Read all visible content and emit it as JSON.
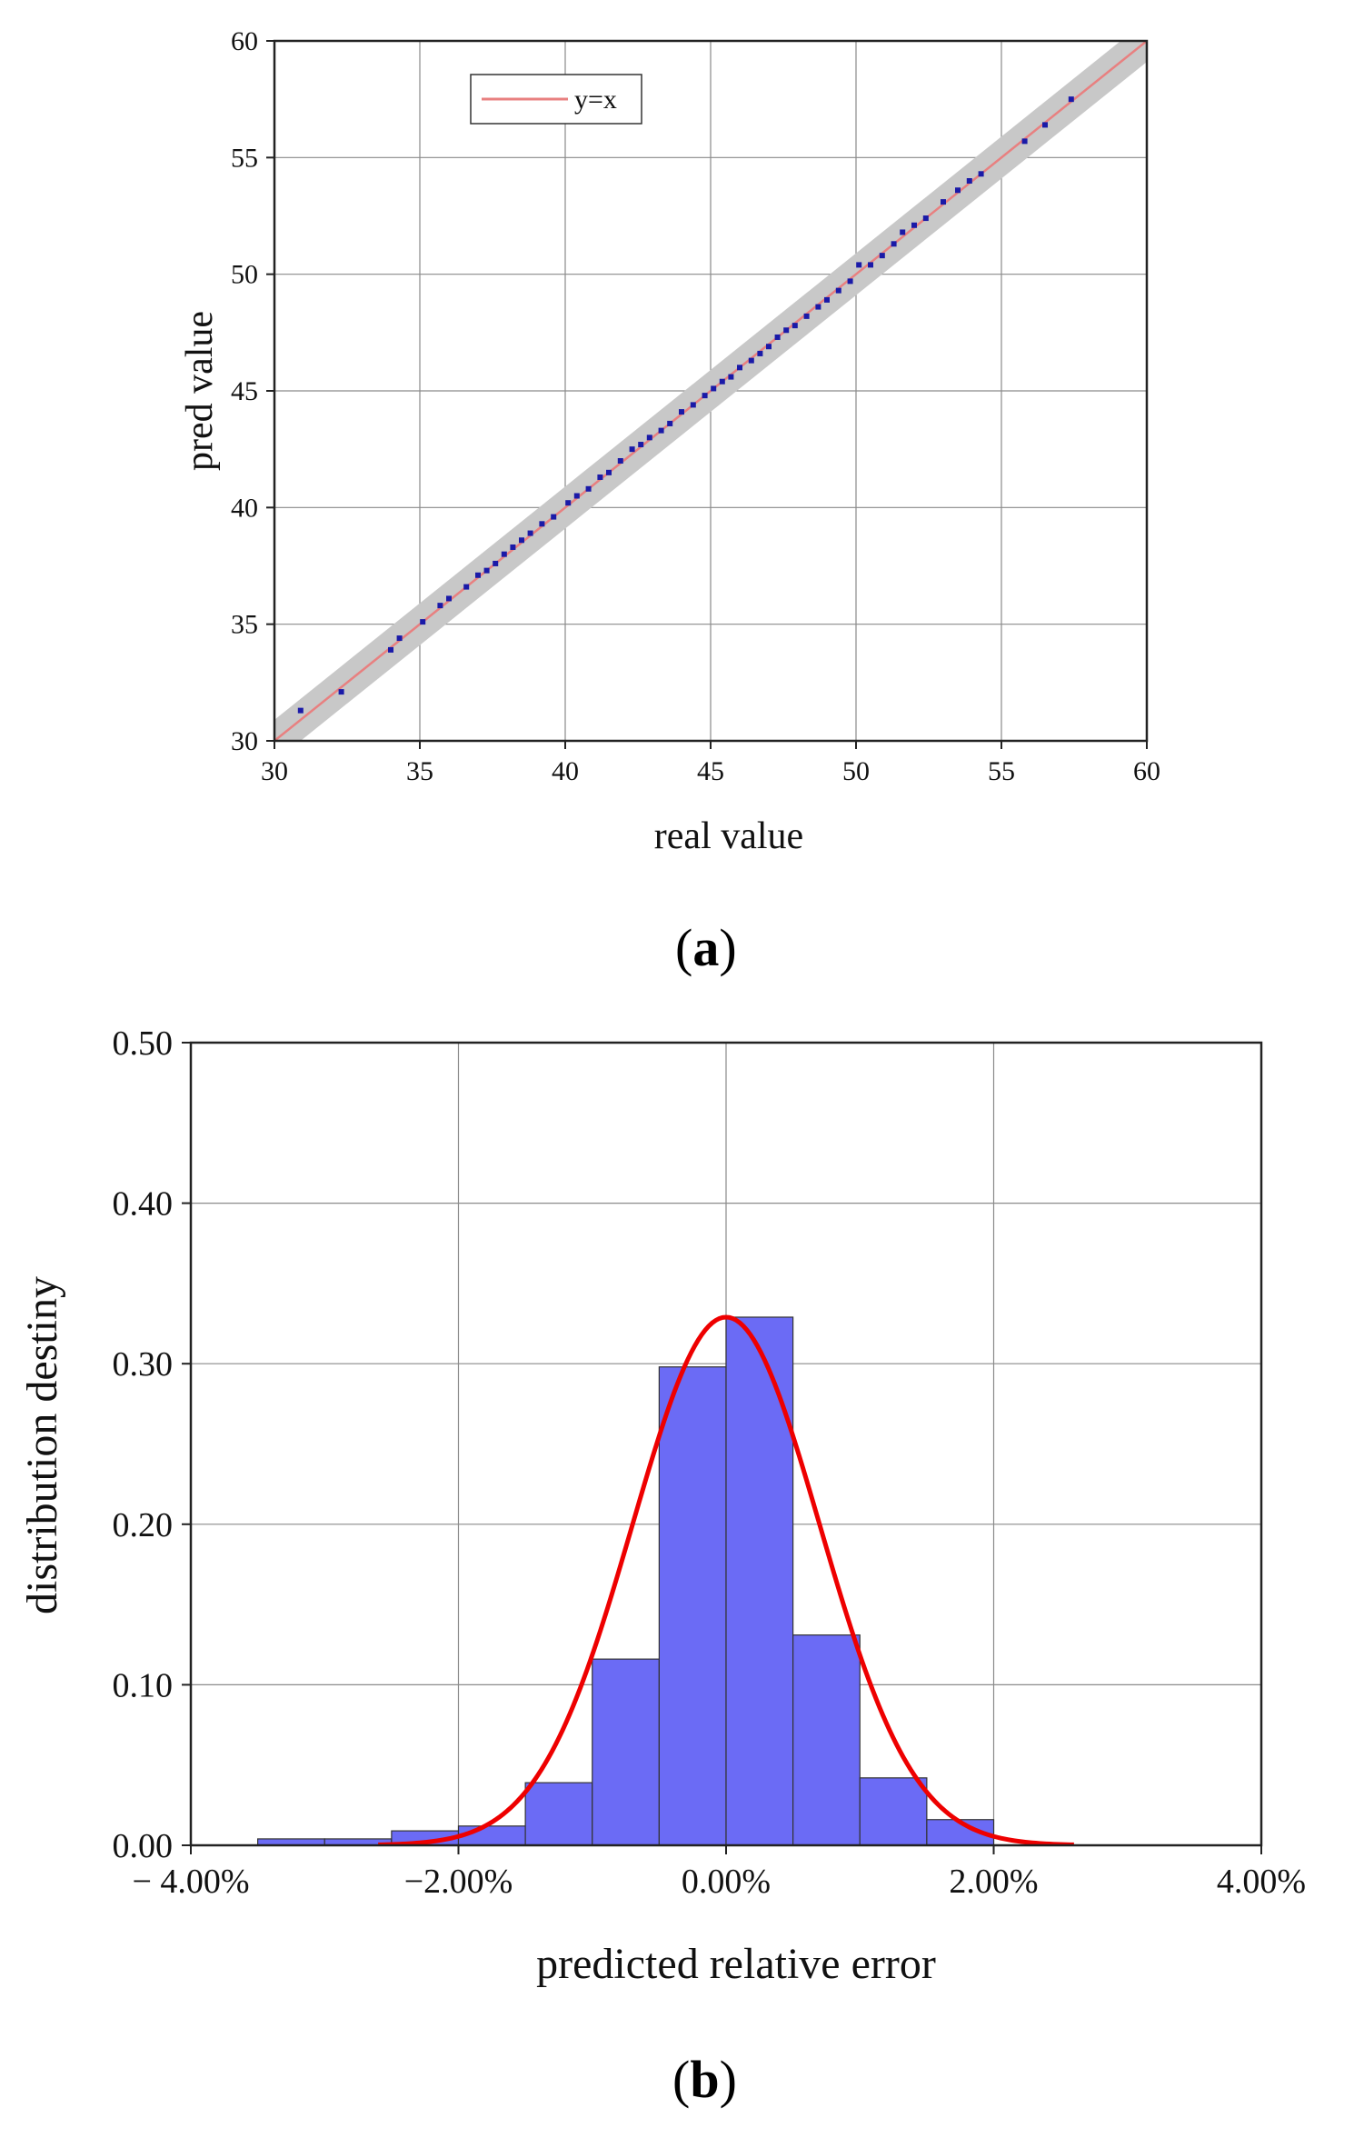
{
  "chart_data": [
    {
      "panel": "(a)",
      "panel_letter": "a",
      "type": "scatter",
      "xlabel": "real value",
      "ylabel": "pred value",
      "xlim": [
        30,
        60
      ],
      "ylim": [
        30,
        60
      ],
      "xticks": [
        30,
        35,
        40,
        45,
        50,
        55,
        60
      ],
      "yticks": [
        30,
        35,
        40,
        45,
        50,
        55,
        60
      ],
      "grid": true,
      "legend": {
        "position": "top-left",
        "entries": [
          "y=x"
        ]
      },
      "reference_line": {
        "name": "y=x",
        "color": "#e88080",
        "from": [
          30,
          30
        ],
        "to": [
          60,
          60
        ]
      },
      "band_halfwidth": 0.9,
      "band_color": "#c8c8c8",
      "point_color": "#1a1aa8",
      "points": [
        [
          30.9,
          31.3
        ],
        [
          32.3,
          32.1
        ],
        [
          34.0,
          33.9
        ],
        [
          34.3,
          34.4
        ],
        [
          35.1,
          35.1
        ],
        [
          35.7,
          35.8
        ],
        [
          36.0,
          36.1
        ],
        [
          36.6,
          36.6
        ],
        [
          37.0,
          37.1
        ],
        [
          37.3,
          37.3
        ],
        [
          37.6,
          37.6
        ],
        [
          37.9,
          38.0
        ],
        [
          38.2,
          38.3
        ],
        [
          38.5,
          38.6
        ],
        [
          38.8,
          38.9
        ],
        [
          39.2,
          39.3
        ],
        [
          39.6,
          39.6
        ],
        [
          40.1,
          40.2
        ],
        [
          40.4,
          40.5
        ],
        [
          40.8,
          40.8
        ],
        [
          41.2,
          41.3
        ],
        [
          41.5,
          41.5
        ],
        [
          41.9,
          42.0
        ],
        [
          42.3,
          42.5
        ],
        [
          42.6,
          42.7
        ],
        [
          42.9,
          43.0
        ],
        [
          43.3,
          43.3
        ],
        [
          43.6,
          43.6
        ],
        [
          44.0,
          44.1
        ],
        [
          44.4,
          44.4
        ],
        [
          44.8,
          44.8
        ],
        [
          45.1,
          45.1
        ],
        [
          45.4,
          45.4
        ],
        [
          45.7,
          45.6
        ],
        [
          46.0,
          46.0
        ],
        [
          46.4,
          46.3
        ],
        [
          46.7,
          46.6
        ],
        [
          47.0,
          46.9
        ],
        [
          47.3,
          47.3
        ],
        [
          47.6,
          47.6
        ],
        [
          47.9,
          47.8
        ],
        [
          48.3,
          48.2
        ],
        [
          48.7,
          48.6
        ],
        [
          49.0,
          48.9
        ],
        [
          49.4,
          49.3
        ],
        [
          49.8,
          49.7
        ],
        [
          50.1,
          50.4
        ],
        [
          50.5,
          50.4
        ],
        [
          50.9,
          50.8
        ],
        [
          51.3,
          51.3
        ],
        [
          51.6,
          51.8
        ],
        [
          52.0,
          52.1
        ],
        [
          52.4,
          52.4
        ],
        [
          53.0,
          53.1
        ],
        [
          53.5,
          53.6
        ],
        [
          53.9,
          54.0
        ],
        [
          54.3,
          54.3
        ],
        [
          55.8,
          55.7
        ],
        [
          56.5,
          56.4
        ],
        [
          57.4,
          57.5
        ]
      ]
    },
    {
      "panel": "(b)",
      "panel_letter": "b",
      "type": "bar",
      "xlabel": "predicted relative error",
      "ylabel": "distribution destiny",
      "xlim": [
        -4.0,
        4.0
      ],
      "ylim": [
        0,
        0.5
      ],
      "xticks": [
        "− 4.00%",
        "−2.00%",
        "0.00%",
        "2.00%",
        "4.00%"
      ],
      "xtick_values": [
        -4,
        -2,
        0,
        2,
        4
      ],
      "yticks": [
        "0.00",
        "0.10",
        "0.20",
        "0.30",
        "0.40",
        "0.50"
      ],
      "ytick_values": [
        0,
        0.1,
        0.2,
        0.3,
        0.4,
        0.5
      ],
      "grid": true,
      "bar_color": "#6b6bf5",
      "bin_edges": [
        -3.5,
        -3.0,
        -2.5,
        -2.0,
        -1.5,
        -1.0,
        -0.5,
        0.0,
        0.5,
        1.0,
        1.5,
        2.0
      ],
      "values": [
        0.004,
        0.004,
        0.009,
        0.012,
        0.039,
        0.116,
        0.298,
        0.329,
        0.131,
        0.042,
        0.016
      ],
      "fit_curve": {
        "type": "normal",
        "mean": 0.0,
        "sd": 0.7,
        "peak": 0.329,
        "x_range": [
          -2.6,
          2.6
        ],
        "color": "#ee0000"
      }
    }
  ]
}
